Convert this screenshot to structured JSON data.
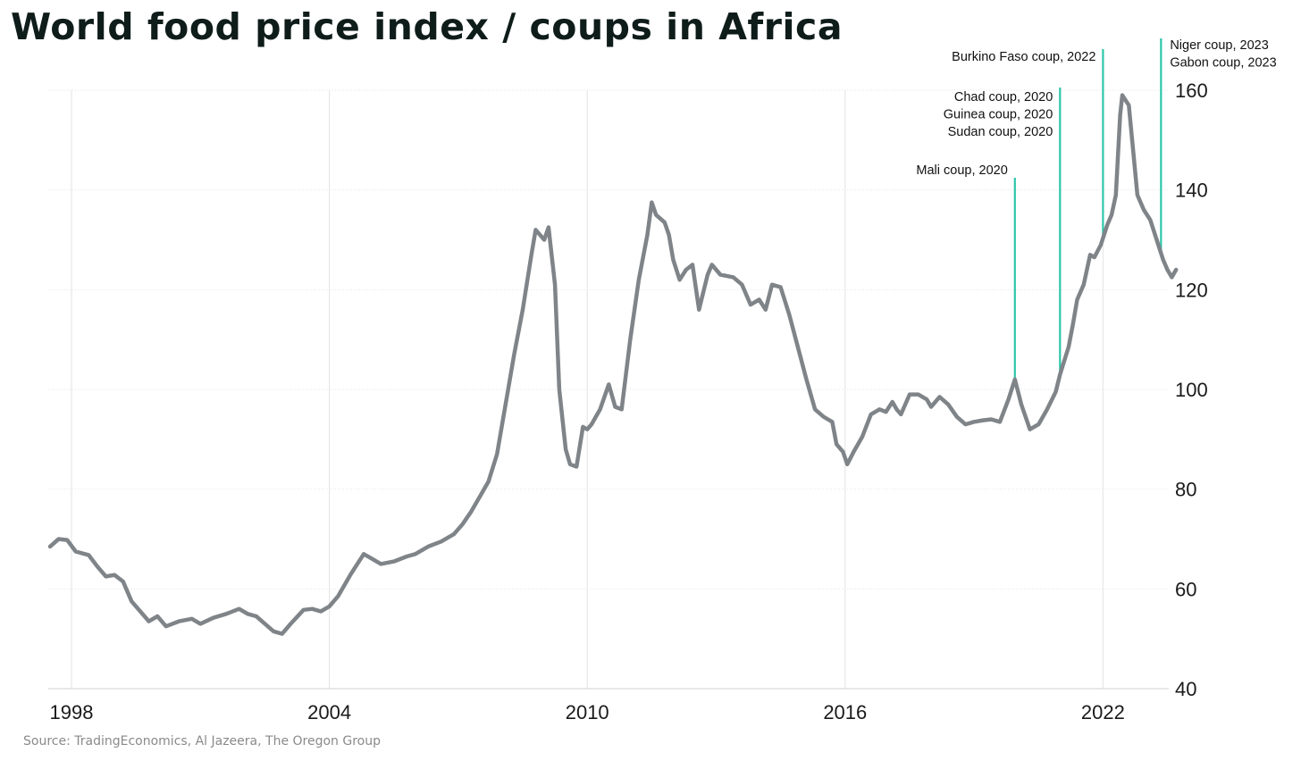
{
  "chart_data": {
    "type": "line",
    "title": "World food price index / coups in Africa",
    "source": "Source: TradingEconomics, Al Jazeera, The Oregon Group",
    "xlabel": "",
    "ylabel": "",
    "xlim": [
      1997.5,
      2023.5
    ],
    "ylim": [
      40,
      160
    ],
    "x_ticks": [
      1998,
      2004,
      2010,
      2016,
      2022
    ],
    "x_tick_labels": [
      "1998",
      "2004",
      "2010",
      "2016",
      "2022"
    ],
    "y_ticks": [
      40,
      60,
      80,
      100,
      120,
      140,
      160
    ],
    "y_tick_labels": [
      "40",
      "60",
      "80",
      "100",
      "120",
      "140",
      "160"
    ],
    "y_axis_position": "right",
    "grid": true,
    "line_color": "#7f8489",
    "annotation_color": "#2cc6a9",
    "series": [
      {
        "points": [
          [
            1997.5,
            68.5
          ],
          [
            1997.7,
            70.0
          ],
          [
            1997.9,
            69.8
          ],
          [
            1998.1,
            67.5
          ],
          [
            1998.4,
            66.8
          ],
          [
            1998.6,
            64.5
          ],
          [
            1998.8,
            62.5
          ],
          [
            1999.0,
            62.8
          ],
          [
            1999.2,
            61.5
          ],
          [
            1999.4,
            57.5
          ],
          [
            1999.6,
            55.5
          ],
          [
            1999.8,
            53.5
          ],
          [
            2000.0,
            54.5
          ],
          [
            2000.2,
            52.5
          ],
          [
            2000.5,
            53.5
          ],
          [
            2000.8,
            54.0
          ],
          [
            2001.0,
            53.0
          ],
          [
            2001.3,
            54.2
          ],
          [
            2001.6,
            55.0
          ],
          [
            2001.9,
            56.0
          ],
          [
            2002.1,
            55.0
          ],
          [
            2002.3,
            54.5
          ],
          [
            2002.5,
            53.0
          ],
          [
            2002.7,
            51.5
          ],
          [
            2002.9,
            51.0
          ],
          [
            2003.1,
            53.0
          ],
          [
            2003.4,
            55.8
          ],
          [
            2003.6,
            56.0
          ],
          [
            2003.8,
            55.5
          ],
          [
            2004.0,
            56.5
          ],
          [
            2004.2,
            58.5
          ],
          [
            2004.5,
            63.0
          ],
          [
            2004.8,
            67.0
          ],
          [
            2005.0,
            66.0
          ],
          [
            2005.2,
            65.0
          ],
          [
            2005.5,
            65.5
          ],
          [
            2005.8,
            66.5
          ],
          [
            2006.0,
            67.0
          ],
          [
            2006.3,
            68.5
          ],
          [
            2006.6,
            69.5
          ],
          [
            2006.9,
            71.0
          ],
          [
            2007.1,
            73.0
          ],
          [
            2007.3,
            75.5
          ],
          [
            2007.5,
            78.5
          ],
          [
            2007.7,
            81.5
          ],
          [
            2007.9,
            87.0
          ],
          [
            2008.1,
            97.0
          ],
          [
            2008.3,
            107.0
          ],
          [
            2008.5,
            116.0
          ],
          [
            2008.7,
            127.0
          ],
          [
            2008.8,
            132.0
          ],
          [
            2009.0,
            130.0
          ],
          [
            2009.1,
            132.5
          ],
          [
            2009.25,
            121.0
          ],
          [
            2009.35,
            100.0
          ],
          [
            2009.5,
            88.0
          ],
          [
            2009.6,
            85.0
          ],
          [
            2009.75,
            84.5
          ],
          [
            2009.9,
            92.5
          ],
          [
            2010.0,
            92.0
          ],
          [
            2010.1,
            93.0
          ],
          [
            2010.3,
            96.0
          ],
          [
            2010.5,
            101.0
          ],
          [
            2010.65,
            96.5
          ],
          [
            2010.8,
            96.0
          ],
          [
            2011.0,
            110.0
          ],
          [
            2011.2,
            122.0
          ],
          [
            2011.4,
            131.0
          ],
          [
            2011.5,
            137.5
          ],
          [
            2011.6,
            135.0
          ],
          [
            2011.8,
            133.5
          ],
          [
            2011.9,
            131.0
          ],
          [
            2012.0,
            126.0
          ],
          [
            2012.15,
            122.0
          ],
          [
            2012.3,
            124.0
          ],
          [
            2012.45,
            125.0
          ],
          [
            2012.6,
            116.0
          ],
          [
            2012.8,
            123.0
          ],
          [
            2012.9,
            125.0
          ],
          [
            2013.1,
            123.0
          ],
          [
            2013.4,
            122.5
          ],
          [
            2013.6,
            121.0
          ],
          [
            2013.8,
            117.0
          ],
          [
            2014.0,
            118.0
          ],
          [
            2014.15,
            116.0
          ],
          [
            2014.3,
            121.0
          ],
          [
            2014.5,
            120.5
          ],
          [
            2014.7,
            115.0
          ],
          [
            2014.9,
            108.5
          ],
          [
            2015.1,
            102.0
          ],
          [
            2015.3,
            96.0
          ],
          [
            2015.5,
            94.5
          ],
          [
            2015.7,
            93.5
          ],
          [
            2015.8,
            89.0
          ],
          [
            2015.95,
            87.5
          ],
          [
            2016.05,
            85.0
          ],
          [
            2016.2,
            87.5
          ],
          [
            2016.4,
            90.5
          ],
          [
            2016.6,
            95.0
          ],
          [
            2016.8,
            96.0
          ],
          [
            2016.95,
            95.5
          ],
          [
            2017.1,
            97.5
          ],
          [
            2017.2,
            96.0
          ],
          [
            2017.3,
            95.0
          ],
          [
            2017.5,
            99.0
          ],
          [
            2017.7,
            99.0
          ],
          [
            2017.9,
            98.0
          ],
          [
            2018.0,
            96.5
          ],
          [
            2018.2,
            98.5
          ],
          [
            2018.4,
            97.0
          ],
          [
            2018.6,
            94.5
          ],
          [
            2018.8,
            93.0
          ],
          [
            2019.0,
            93.5
          ],
          [
            2019.2,
            93.8
          ],
          [
            2019.4,
            94.0
          ],
          [
            2019.6,
            93.5
          ],
          [
            2019.8,
            98.0
          ],
          [
            2019.95,
            102.0
          ],
          [
            2020.1,
            97.0
          ],
          [
            2020.3,
            92.0
          ],
          [
            2020.5,
            93.0
          ],
          [
            2020.7,
            96.0
          ],
          [
            2020.9,
            99.5
          ],
          [
            2021.0,
            103.0
          ],
          [
            2021.2,
            108.5
          ],
          [
            2021.3,
            113.0
          ],
          [
            2021.4,
            118.0
          ],
          [
            2021.55,
            121.0
          ],
          [
            2021.7,
            127.0
          ],
          [
            2021.8,
            126.5
          ],
          [
            2021.95,
            129.0
          ],
          [
            2022.1,
            133.0
          ],
          [
            2022.2,
            135.0
          ],
          [
            2022.3,
            139.0
          ],
          [
            2022.4,
            155.0
          ],
          [
            2022.45,
            159.0
          ],
          [
            2022.6,
            157.0
          ],
          [
            2022.7,
            148.0
          ],
          [
            2022.8,
            139.0
          ],
          [
            2022.95,
            136.0
          ],
          [
            2023.1,
            134.0
          ],
          [
            2023.25,
            130.0
          ],
          [
            2023.4,
            126.0
          ],
          [
            2023.5,
            124.0
          ],
          [
            2023.6,
            122.5
          ],
          [
            2023.7,
            124.0
          ]
        ]
      }
    ],
    "annotations": [
      {
        "x": 2019.95,
        "lines": [
          "Mali coup, 2020"
        ]
      },
      {
        "x": 2021.0,
        "lines": [
          "Chad coup, 2020",
          "Guinea coup, 2020",
          "Sudan coup, 2020"
        ]
      },
      {
        "x": 2022.0,
        "lines": [
          "Burkino Faso coup, 2022"
        ]
      },
      {
        "x": 2023.35,
        "lines": [
          "Niger coup, 2023",
          "Gabon coup, 2023"
        ]
      }
    ]
  }
}
